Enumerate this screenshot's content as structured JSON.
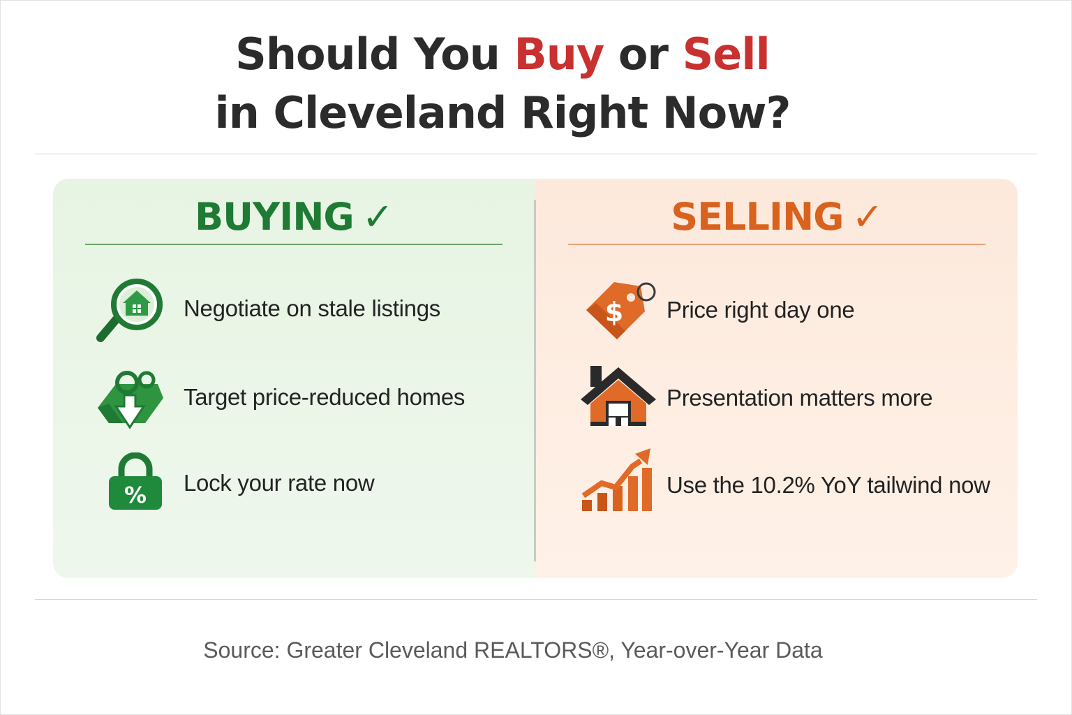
{
  "title": {
    "line1_part1": "Should You ",
    "line1_buy": "Buy",
    "line1_or": " or ",
    "line1_sell": "Sell",
    "line2": "in Cleveland Right Now?"
  },
  "colors": {
    "title_accent": "#c8312f",
    "buy_green": "#1f7a34",
    "sell_orange": "#d9621f"
  },
  "buying": {
    "heading": "BUYING",
    "check": "✓",
    "items": [
      {
        "icon": "magnifier-house-icon",
        "text": "Negotiate on stale listings"
      },
      {
        "icon": "price-tag-down-arrow-icon",
        "text": "Target price-reduced homes"
      },
      {
        "icon": "padlock-percent-icon",
        "text": "Lock your rate now"
      }
    ]
  },
  "selling": {
    "heading": "SELLING",
    "check": "✓",
    "items": [
      {
        "icon": "dollar-price-tag-icon",
        "text": "Price right day one"
      },
      {
        "icon": "house-icon",
        "text": "Presentation matters more"
      },
      {
        "icon": "rising-bar-chart-arrow-icon",
        "text": "Use the 10.2% YoY tailwind now"
      }
    ]
  },
  "source": "Source: Greater Cleveland REALTORS®, Year-over-Year Data"
}
